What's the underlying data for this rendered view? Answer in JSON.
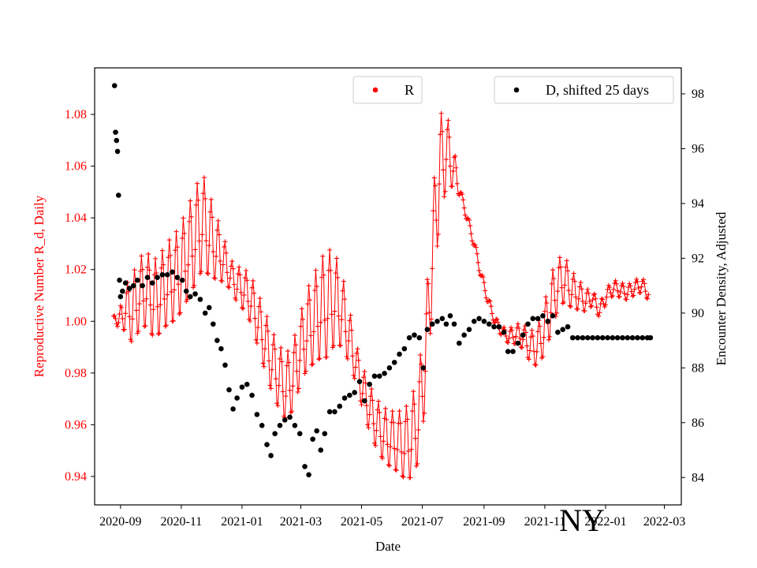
{
  "chart_data": {
    "type": "scatter",
    "title": "",
    "region_label": "NY",
    "xlabel": "Date",
    "ylabel_left": "Reproductive Number R_d, Daily",
    "ylabel_right": "Encounter Density, Adjusted",
    "x_ticks": [
      "2020-09",
      "2020-11",
      "2021-01",
      "2021-03",
      "2021-05",
      "2021-07",
      "2021-09",
      "2021-11",
      "2022-01",
      "2022-03"
    ],
    "xlim": [
      "2020-08-06",
      "2022-03-18"
    ],
    "y_left_ticks": [
      "0.94",
      "0.96",
      "0.98",
      "1.00",
      "1.02",
      "1.04",
      "1.06",
      "1.08"
    ],
    "ylim_left": [
      0.929,
      1.098
    ],
    "y_right_ticks": [
      "84",
      "86",
      "88",
      "90",
      "92",
      "94",
      "96",
      "98"
    ],
    "ylim_right": [
      83.0,
      98.95
    ],
    "legend": [
      {
        "name": "R",
        "color": "#ff0000",
        "location": "top-center"
      },
      {
        "name": "D, shifted 25 days",
        "color": "#000000",
        "location": "top-right"
      }
    ],
    "colors": {
      "R": "#ff0000",
      "D": "#000000",
      "left_axis": "#ff0000",
      "right_axis": "#000000"
    },
    "series": [
      {
        "name": "R",
        "axis": "left",
        "marker": "+",
        "points": [
          [
            "2020-08-25",
            1.002
          ],
          [
            "2020-08-31",
            1.0
          ],
          [
            "2020-09-06",
            1.005
          ],
          [
            "2020-09-13",
            1.004
          ],
          [
            "2020-09-20",
            1.01
          ],
          [
            "2020-09-27",
            1.012
          ],
          [
            "2020-10-04",
            1.008
          ],
          [
            "2020-10-11",
            1.01
          ],
          [
            "2020-10-18",
            1.014
          ],
          [
            "2020-10-25",
            1.016
          ],
          [
            "2020-11-01",
            1.02
          ],
          [
            "2020-11-08",
            1.026
          ],
          [
            "2020-11-15",
            1.032
          ],
          [
            "2020-11-22",
            1.038
          ],
          [
            "2020-11-29",
            1.033
          ],
          [
            "2020-12-06",
            1.028
          ],
          [
            "2020-12-13",
            1.024
          ],
          [
            "2020-12-20",
            1.018
          ],
          [
            "2020-12-27",
            1.014
          ],
          [
            "2021-01-03",
            1.012
          ],
          [
            "2021-01-10",
            1.008
          ],
          [
            "2021-01-17",
            1.0
          ],
          [
            "2021-01-24",
            0.992
          ],
          [
            "2021-01-31",
            0.984
          ],
          [
            "2021-02-07",
            0.978
          ],
          [
            "2021-02-14",
            0.974
          ],
          [
            "2021-02-21",
            0.978
          ],
          [
            "2021-02-28",
            0.988
          ],
          [
            "2021-03-07",
            0.996
          ],
          [
            "2021-03-14",
            1.0
          ],
          [
            "2021-03-21",
            1.004
          ],
          [
            "2021-03-28",
            1.006
          ],
          [
            "2021-04-04",
            1.008
          ],
          [
            "2021-04-11",
            1.004
          ],
          [
            "2021-04-18",
            0.995
          ],
          [
            "2021-04-25",
            0.984
          ],
          [
            "2021-05-02",
            0.974
          ],
          [
            "2021-05-09",
            0.966
          ],
          [
            "2021-05-16",
            0.96
          ],
          [
            "2021-05-23",
            0.956
          ],
          [
            "2021-05-30",
            0.954
          ],
          [
            "2021-06-06",
            0.953
          ],
          [
            "2021-06-13",
            0.952
          ],
          [
            "2021-06-20",
            0.954
          ],
          [
            "2021-06-27",
            0.962
          ],
          [
            "2021-07-04",
            0.985
          ],
          [
            "2021-07-11",
            1.025
          ],
          [
            "2021-07-18",
            1.058
          ],
          [
            "2021-07-25",
            1.066
          ],
          [
            "2021-08-01",
            1.06
          ],
          [
            "2021-08-08",
            1.05
          ],
          [
            "2021-08-15",
            1.04
          ],
          [
            "2021-08-22",
            1.03
          ],
          [
            "2021-08-29",
            1.018
          ],
          [
            "2021-09-05",
            1.008
          ],
          [
            "2021-09-12",
            1.0
          ],
          [
            "2021-09-19",
            0.996
          ],
          [
            "2021-09-26",
            0.994
          ],
          [
            "2021-10-03",
            0.995
          ],
          [
            "2021-10-10",
            0.994
          ],
          [
            "2021-10-17",
            0.99
          ],
          [
            "2021-10-24",
            0.99
          ],
          [
            "2021-10-31",
            0.996
          ],
          [
            "2021-11-07",
            1.006
          ],
          [
            "2021-11-14",
            1.014
          ],
          [
            "2021-11-21",
            1.016
          ],
          [
            "2021-11-28",
            1.012
          ],
          [
            "2021-12-05",
            1.01
          ],
          [
            "2021-12-12",
            1.008
          ],
          [
            "2021-12-19",
            1.009
          ],
          [
            "2021-12-26",
            1.004
          ],
          [
            "2022-01-02",
            1.01
          ],
          [
            "2022-01-09",
            1.013
          ],
          [
            "2022-01-16",
            1.012
          ],
          [
            "2022-01-23",
            1.011
          ],
          [
            "2022-01-30",
            1.013
          ],
          [
            "2022-02-06",
            1.014
          ],
          [
            "2022-02-13",
            1.011
          ]
        ],
        "amplitude": [
          [
            "2020-08-25",
            0.0
          ],
          [
            "2020-09-13",
            0.014
          ],
          [
            "2020-10-11",
            0.016
          ],
          [
            "2020-11-22",
            0.02
          ],
          [
            "2020-12-20",
            0.006
          ],
          [
            "2021-01-24",
            0.012
          ],
          [
            "2021-02-28",
            0.014
          ],
          [
            "2021-03-28",
            0.022
          ],
          [
            "2021-04-25",
            0.008
          ],
          [
            "2021-06-06",
            0.012
          ],
          [
            "2021-06-27",
            0.018
          ],
          [
            "2021-07-18",
            0.022
          ],
          [
            "2021-08-08",
            0.002
          ],
          [
            "2021-09-19",
            0.002
          ],
          [
            "2021-10-17",
            0.006
          ],
          [
            "2021-11-07",
            0.012
          ],
          [
            "2021-12-19",
            0.003
          ],
          [
            "2022-02-13",
            0.003
          ]
        ]
      },
      {
        "name": "D, shifted 25 days",
        "axis": "right",
        "marker": "o",
        "points": [
          [
            "2020-08-26",
            98.3
          ],
          [
            "2020-08-27",
            96.6
          ],
          [
            "2020-08-28",
            96.3
          ],
          [
            "2020-08-29",
            95.9
          ],
          [
            "2020-08-30",
            94.3
          ],
          [
            "2020-08-31",
            91.2
          ],
          [
            "2020-09-01",
            90.6
          ],
          [
            "2020-09-03",
            90.8
          ],
          [
            "2020-09-06",
            91.1
          ],
          [
            "2020-09-10",
            90.9
          ],
          [
            "2020-09-14",
            91.0
          ],
          [
            "2020-09-18",
            91.2
          ],
          [
            "2020-09-23",
            91.0
          ],
          [
            "2020-09-28",
            91.3
          ],
          [
            "2020-10-03",
            91.1
          ],
          [
            "2020-10-08",
            91.3
          ],
          [
            "2020-10-13",
            91.4
          ],
          [
            "2020-10-18",
            91.4
          ],
          [
            "2020-10-23",
            91.5
          ],
          [
            "2020-10-28",
            91.3
          ],
          [
            "2020-11-02",
            91.2
          ],
          [
            "2020-11-06",
            90.8
          ],
          [
            "2020-11-10",
            90.6
          ],
          [
            "2020-11-15",
            90.7
          ],
          [
            "2020-11-20",
            90.5
          ],
          [
            "2020-11-25",
            90.0
          ],
          [
            "2020-11-29",
            90.2
          ],
          [
            "2020-12-03",
            89.6
          ],
          [
            "2020-12-07",
            89.0
          ],
          [
            "2020-12-11",
            88.7
          ],
          [
            "2020-12-15",
            88.1
          ],
          [
            "2020-12-19",
            87.2
          ],
          [
            "2020-12-23",
            86.5
          ],
          [
            "2020-12-27",
            86.9
          ],
          [
            "2021-01-01",
            87.3
          ],
          [
            "2021-01-06",
            87.4
          ],
          [
            "2021-01-11",
            87.0
          ],
          [
            "2021-01-16",
            86.3
          ],
          [
            "2021-01-21",
            85.9
          ],
          [
            "2021-01-26",
            85.2
          ],
          [
            "2021-01-30",
            84.8
          ],
          [
            "2021-02-03",
            85.6
          ],
          [
            "2021-02-08",
            85.9
          ],
          [
            "2021-02-13",
            86.1
          ],
          [
            "2021-02-18",
            86.2
          ],
          [
            "2021-02-23",
            85.9
          ],
          [
            "2021-02-28",
            85.6
          ],
          [
            "2021-03-05",
            84.4
          ],
          [
            "2021-03-09",
            84.1
          ],
          [
            "2021-03-13",
            85.4
          ],
          [
            "2021-03-17",
            85.7
          ],
          [
            "2021-03-21",
            85.0
          ],
          [
            "2021-03-25",
            85.6
          ],
          [
            "2021-03-30",
            86.4
          ],
          [
            "2021-04-04",
            86.4
          ],
          [
            "2021-04-09",
            86.6
          ],
          [
            "2021-04-14",
            86.9
          ],
          [
            "2021-04-19",
            87.0
          ],
          [
            "2021-04-24",
            87.1
          ],
          [
            "2021-04-29",
            87.5
          ],
          [
            "2021-05-04",
            86.8
          ],
          [
            "2021-05-09",
            87.4
          ],
          [
            "2021-05-14",
            87.7
          ],
          [
            "2021-05-19",
            87.7
          ],
          [
            "2021-05-24",
            87.8
          ],
          [
            "2021-05-29",
            88.0
          ],
          [
            "2021-06-03",
            88.2
          ],
          [
            "2021-06-08",
            88.5
          ],
          [
            "2021-06-13",
            88.7
          ],
          [
            "2021-06-18",
            89.1
          ],
          [
            "2021-06-23",
            89.2
          ],
          [
            "2021-06-28",
            89.1
          ],
          [
            "2021-07-02",
            88.0
          ],
          [
            "2021-07-06",
            89.4
          ],
          [
            "2021-07-11",
            89.6
          ],
          [
            "2021-07-16",
            89.7
          ],
          [
            "2021-07-21",
            89.8
          ],
          [
            "2021-07-25",
            89.6
          ],
          [
            "2021-07-29",
            89.9
          ],
          [
            "2021-08-02",
            89.6
          ],
          [
            "2021-08-07",
            88.9
          ],
          [
            "2021-08-12",
            89.2
          ],
          [
            "2021-08-17",
            89.4
          ],
          [
            "2021-08-22",
            89.7
          ],
          [
            "2021-08-27",
            89.8
          ],
          [
            "2021-09-01",
            89.7
          ],
          [
            "2021-09-06",
            89.6
          ],
          [
            "2021-09-11",
            89.5
          ],
          [
            "2021-09-16",
            89.5
          ],
          [
            "2021-09-21",
            89.3
          ],
          [
            "2021-09-25",
            88.6
          ],
          [
            "2021-09-30",
            88.6
          ],
          [
            "2021-10-05",
            88.9
          ],
          [
            "2021-10-10",
            89.2
          ],
          [
            "2021-10-15",
            89.6
          ],
          [
            "2021-10-20",
            89.8
          ],
          [
            "2021-10-25",
            89.8
          ],
          [
            "2021-10-30",
            89.9
          ],
          [
            "2021-11-04",
            89.7
          ],
          [
            "2021-11-09",
            89.9
          ],
          [
            "2021-11-14",
            89.3
          ],
          [
            "2021-11-19",
            89.4
          ],
          [
            "2021-11-24",
            89.5
          ],
          [
            "2021-11-29",
            89.1
          ],
          [
            "2021-12-04",
            89.1
          ],
          [
            "2021-12-09",
            89.1
          ],
          [
            "2021-12-14",
            89.1
          ],
          [
            "2021-12-19",
            89.1
          ],
          [
            "2021-12-24",
            89.1
          ],
          [
            "2021-12-29",
            89.1
          ],
          [
            "2022-01-03",
            89.1
          ],
          [
            "2022-01-08",
            89.1
          ],
          [
            "2022-01-13",
            89.1
          ],
          [
            "2022-01-18",
            89.1
          ],
          [
            "2022-01-23",
            89.1
          ],
          [
            "2022-01-28",
            89.1
          ],
          [
            "2022-02-02",
            89.1
          ],
          [
            "2022-02-07",
            89.1
          ],
          [
            "2022-02-12",
            89.1
          ],
          [
            "2022-02-15",
            89.1
          ]
        ]
      }
    ]
  }
}
